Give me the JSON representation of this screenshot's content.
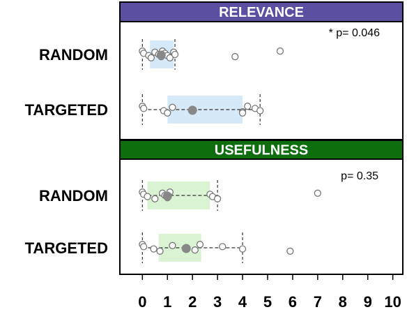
{
  "chart_data": {
    "type": "box",
    "x_ticks": [
      0,
      1,
      2,
      3,
      4,
      5,
      6,
      7,
      8,
      9,
      10
    ],
    "xlim": [
      -0.9,
      10.4
    ],
    "panels": [
      {
        "title": "RELEVANCE",
        "title_bg": "#5B4FA2",
        "box_color": "#D6E9F8",
        "annotation": "* p= 0.046",
        "groups": [
          {
            "label": "RANDOM",
            "whisker": [
              0,
              1.3
            ],
            "box": [
              0.3,
              1.25
            ],
            "mean": 0.75,
            "points": [
              0,
              0.05,
              0.25,
              0.35,
              0.5,
              0.65,
              0.75,
              0.8,
              0.9,
              1.0,
              1.1,
              1.25,
              1.3,
              3.7,
              5.5
            ]
          },
          {
            "label": "TARGETED",
            "whisker": [
              0,
              4.7
            ],
            "box": [
              1.0,
              4.0
            ],
            "mean": 2.0,
            "points": [
              0,
              0.05,
              0.85,
              1.0,
              1.2,
              2.0,
              4.0,
              4.2,
              4.5,
              4.7,
              4.0
            ]
          }
        ]
      },
      {
        "title": "USEFULNESS",
        "title_bg": "#0E6E0E",
        "box_color": "#D9F3D3",
        "annotation": "p= 0.35",
        "groups": [
          {
            "label": "RANDOM",
            "whisker": [
              0,
              3.0
            ],
            "box": [
              0.2,
              2.7
            ],
            "mean": 1.0,
            "points": [
              0,
              0.05,
              0.2,
              0.5,
              0.8,
              0.9,
              1.0,
              1.1,
              2.7,
              2.8,
              3.0,
              7.0
            ]
          },
          {
            "label": "TARGETED",
            "whisker": [
              0,
              4.0
            ],
            "box": [
              0.65,
              2.35
            ],
            "mean": 1.75,
            "points": [
              0,
              0.05,
              0.45,
              0.7,
              1.2,
              1.75,
              2.1,
              2.3,
              3.2,
              4.0,
              5.9
            ]
          }
        ]
      }
    ]
  }
}
